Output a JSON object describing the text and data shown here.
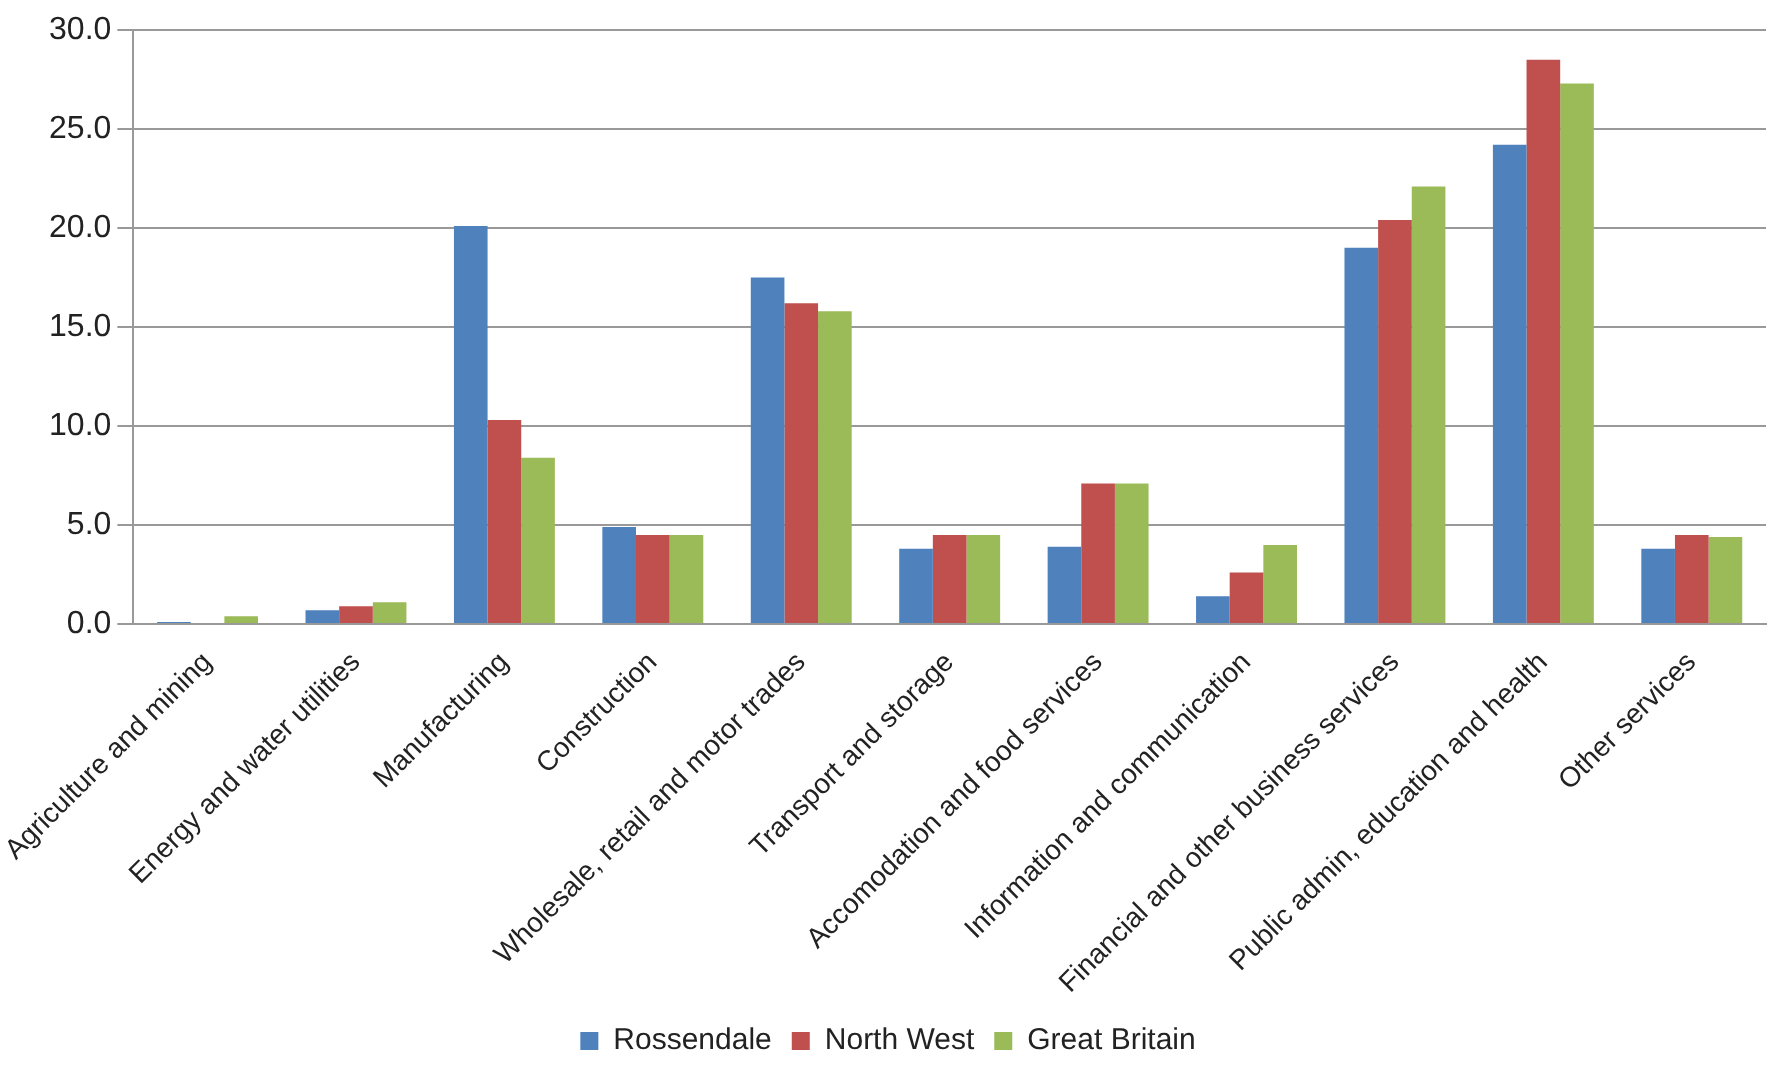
{
  "chart_data": {
    "type": "bar",
    "categories": [
      "Agriculture and mining",
      "Energy and water utilities",
      "Manufacturing",
      "Construction",
      "Wholesale, retail and motor trades",
      "Transport and storage",
      "Accomodation and food services",
      "Information and communication",
      "Financial and other business services",
      "Public admin, education and health",
      "Other services"
    ],
    "series": [
      {
        "name": "Rossendale",
        "color": "#4f81bd",
        "values": [
          0.1,
          0.7,
          20.1,
          4.9,
          17.5,
          3.8,
          3.9,
          1.4,
          19.0,
          24.2,
          3.8
        ]
      },
      {
        "name": "North West",
        "color": "#c0504d",
        "values": [
          0,
          0.9,
          10.3,
          4.5,
          16.2,
          4.5,
          7.1,
          2.6,
          20.4,
          28.5,
          4.5
        ]
      },
      {
        "name": "Great Britain",
        "color": "#9bbb59",
        "values": [
          0.4,
          1.1,
          8.4,
          4.5,
          15.8,
          4.5,
          7.1,
          4.0,
          22.1,
          27.3,
          4.4
        ]
      }
    ],
    "ylim": [
      0,
      30
    ],
    "yticks": [
      {
        "value": 0,
        "label": "0.0"
      },
      {
        "value": 5,
        "label": "5.0"
      },
      {
        "value": 10,
        "label": "10.0"
      },
      {
        "value": 15,
        "label": "15.0"
      },
      {
        "value": 20,
        "label": "20.0"
      },
      {
        "value": 25,
        "label": "25.0"
      },
      {
        "value": 30,
        "label": "30.0"
      }
    ],
    "grid": "y",
    "legend": "bottom"
  }
}
